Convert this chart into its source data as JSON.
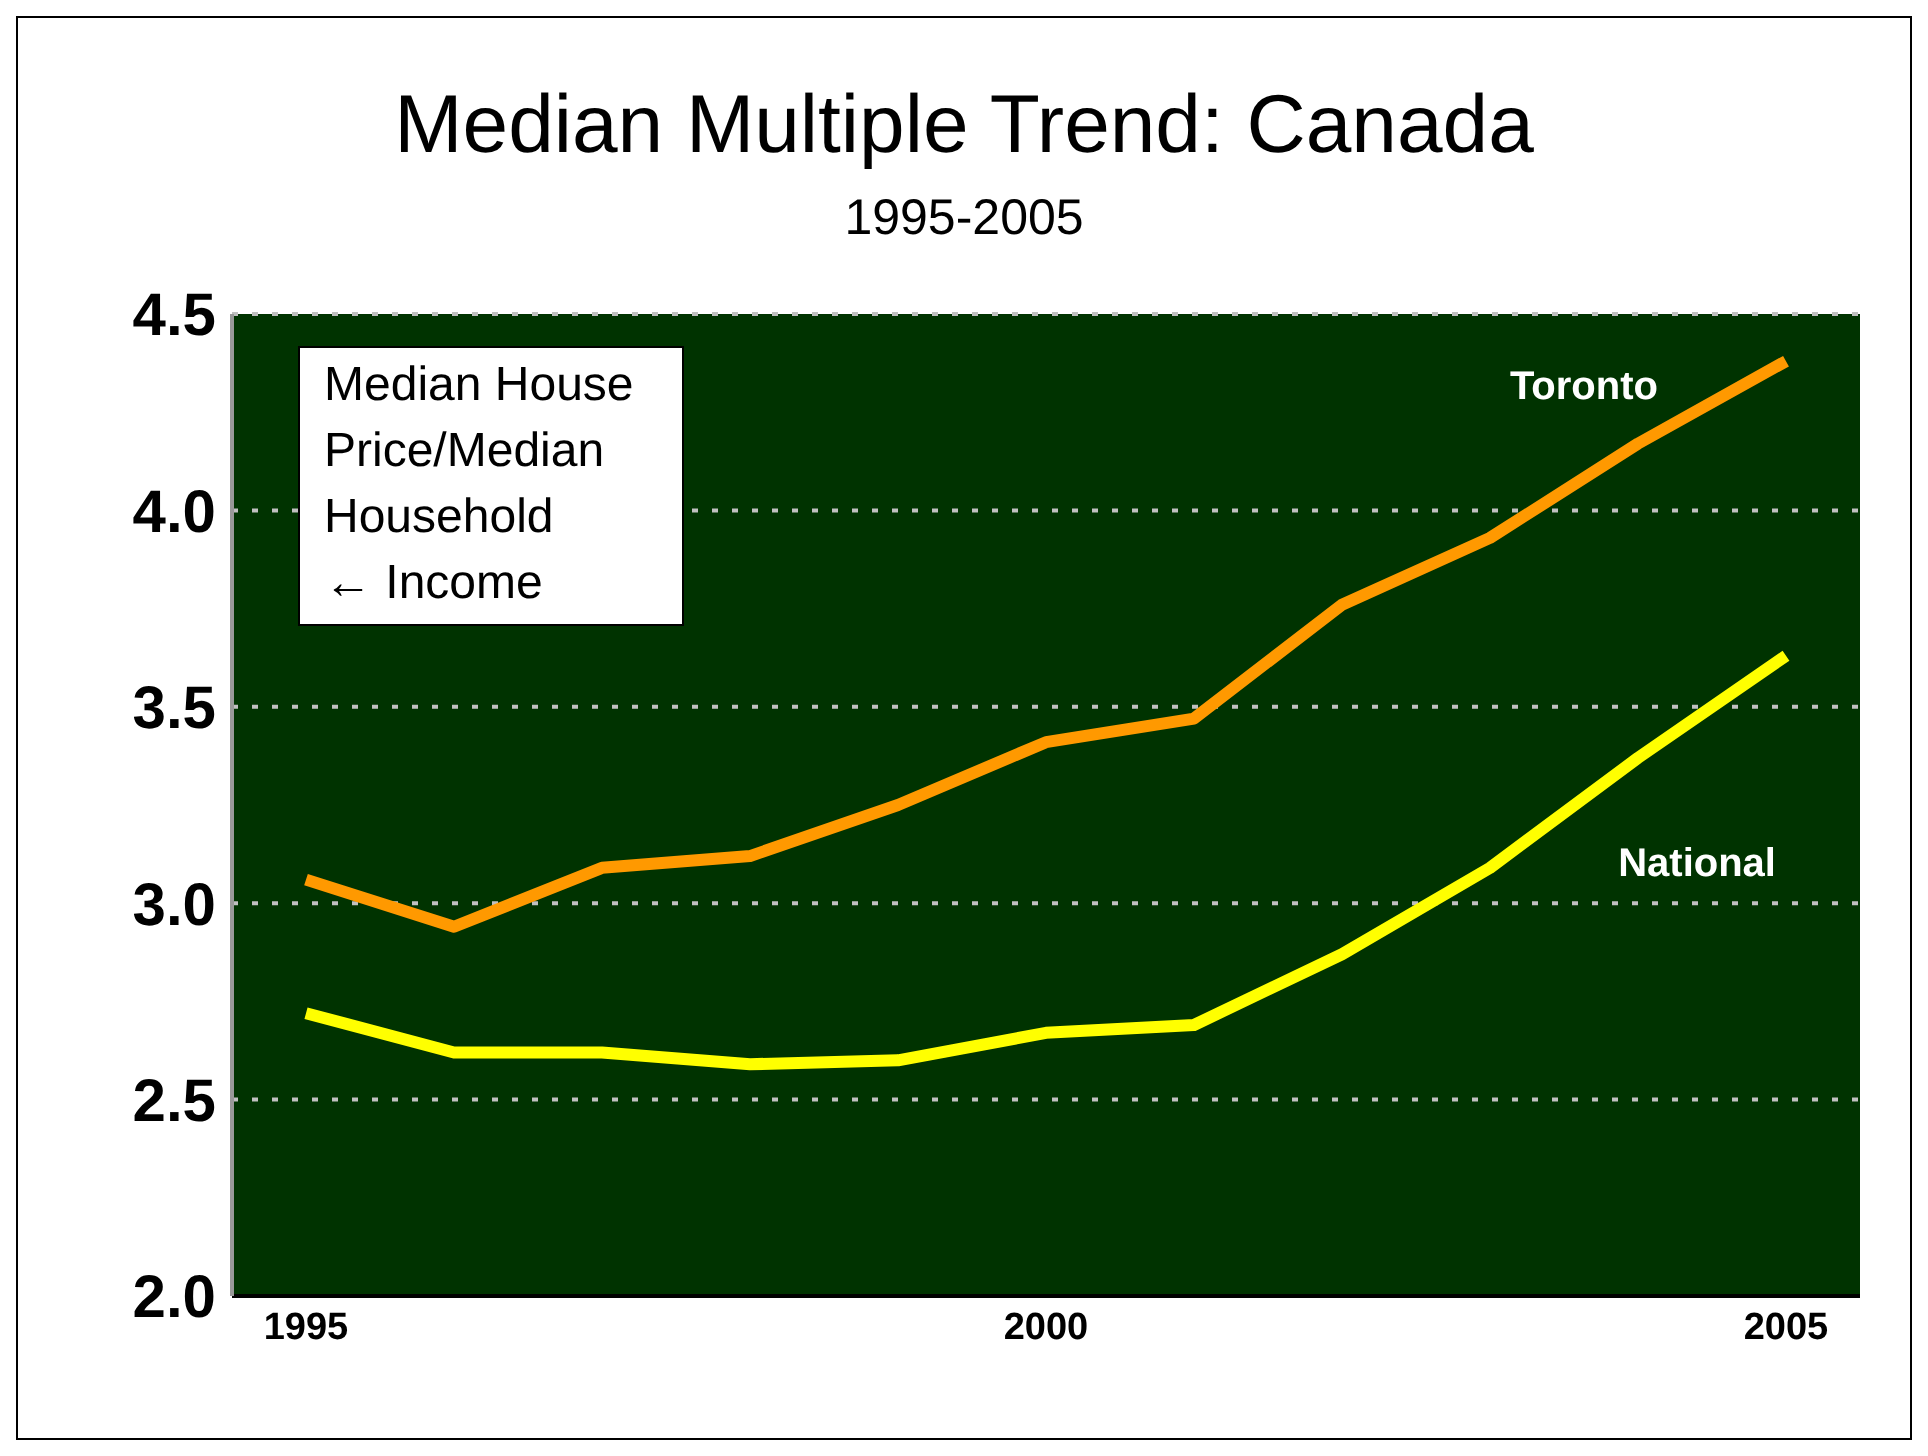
{
  "chart_data": {
    "type": "line",
    "title": "Median Multiple Trend: Canada",
    "subtitle": "1995-2005",
    "annotations": [
      "Median House Price/Median Household ← Income"
    ],
    "x": [
      1995,
      1996,
      1997,
      1998,
      1999,
      2000,
      2001,
      2002,
      2003,
      2004,
      2005
    ],
    "series": [
      {
        "name": "Toronto",
        "color": "#ff9900",
        "values": [
          3.06,
          2.94,
          3.09,
          3.12,
          3.25,
          3.41,
          3.47,
          3.76,
          3.93,
          4.17,
          4.38
        ]
      },
      {
        "name": "National",
        "color": "#ffff00",
        "values": [
          2.72,
          2.62,
          2.62,
          2.59,
          2.6,
          2.67,
          2.69,
          2.87,
          3.09,
          3.37,
          3.63
        ]
      }
    ],
    "xlim": [
      1994.5,
      2005.5
    ],
    "xticks": [
      1995,
      2000,
      2005
    ],
    "ylim": [
      2.0,
      4.5
    ],
    "yticks": [
      {
        "value": 2.0,
        "label": "2.0"
      },
      2.5,
      {
        "value": 3.0,
        "label": "3.0"
      },
      3.5,
      {
        "value": 4.0,
        "label": "4.0"
      },
      4.5
    ],
    "grid": "y"
  }
}
